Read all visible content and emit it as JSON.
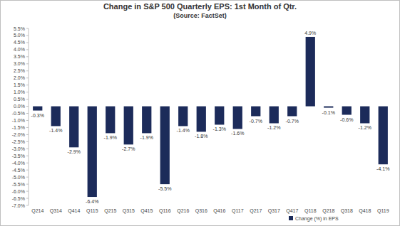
{
  "chart_data": {
    "type": "bar",
    "title": "Change in S&P 500 Quarterly EPS: 1st Month of Qtr.",
    "subtitle": "(Source: FactSet)",
    "categories": [
      "Q214",
      "Q314",
      "Q414",
      "Q115",
      "Q215",
      "Q315",
      "Q415",
      "Q116",
      "Q216",
      "Q316",
      "Q416",
      "Q117",
      "Q217",
      "Q317",
      "Q417",
      "Q118",
      "Q218",
      "Q318",
      "Q418",
      "Q119"
    ],
    "series": [
      {
        "name": "Change (%) in EPS",
        "color": "#1c2b5a",
        "values": [
          -0.3,
          -1.4,
          -2.9,
          -6.4,
          -1.9,
          -2.7,
          -1.9,
          -5.5,
          -1.4,
          -1.8,
          -1.3,
          -1.6,
          -0.7,
          -1.2,
          -0.7,
          4.9,
          -0.1,
          -0.6,
          -1.2,
          -4.1
        ],
        "value_labels": [
          "-0.3%",
          "-1.4%",
          "-2.9%",
          "-6.4%",
          "-1.9%",
          "-2.7%",
          "-1.9%",
          "-5.5%",
          "-1.4%",
          "-1.8%",
          "-1.3%",
          "-1.6%",
          "-0.7%",
          "-1.2%",
          "-0.7%",
          "4.9%",
          "-0.1%",
          "-0.6%",
          "-1.2%",
          "-4.1%"
        ]
      }
    ],
    "ylim": [
      -7,
      5.5
    ],
    "yticks": [
      {
        "value": -7,
        "label": "-7.0%"
      },
      {
        "value": -6.5,
        "label": "-6.5%"
      },
      {
        "value": -6,
        "label": "-6.0%"
      },
      {
        "value": -5.5,
        "label": "-5.5%"
      },
      {
        "value": -5,
        "label": "-5.0%"
      },
      {
        "value": -4.5,
        "label": "-4.5%"
      },
      {
        "value": -4,
        "label": "-4.0%"
      },
      {
        "value": -3.5,
        "label": "-3.5%"
      },
      {
        "value": -3,
        "label": "-3.0%"
      },
      {
        "value": -2.5,
        "label": "-2.5%"
      },
      {
        "value": -2,
        "label": "-2.0%"
      },
      {
        "value": -1.5,
        "label": "-1.5%"
      },
      {
        "value": -1,
        "label": "-1.0%"
      },
      {
        "value": -0.5,
        "label": "-0.5%"
      },
      {
        "value": 0,
        "label": "0.0%"
      },
      {
        "value": 0.5,
        "label": "0.5%"
      },
      {
        "value": 1,
        "label": "1.0%"
      },
      {
        "value": 1.5,
        "label": "1.5%"
      },
      {
        "value": 2,
        "label": "2.0%"
      },
      {
        "value": 2.5,
        "label": "2.5%"
      },
      {
        "value": 3,
        "label": "3.0%"
      },
      {
        "value": 3.5,
        "label": "3.5%"
      },
      {
        "value": 4,
        "label": "4.0%"
      },
      {
        "value": 4.5,
        "label": "4.5%"
      },
      {
        "value": 5,
        "label": "5.0%"
      },
      {
        "value": 5.5,
        "label": "5.5%"
      }
    ],
    "grid": false,
    "legend": "bottom",
    "data_labels": true
  }
}
